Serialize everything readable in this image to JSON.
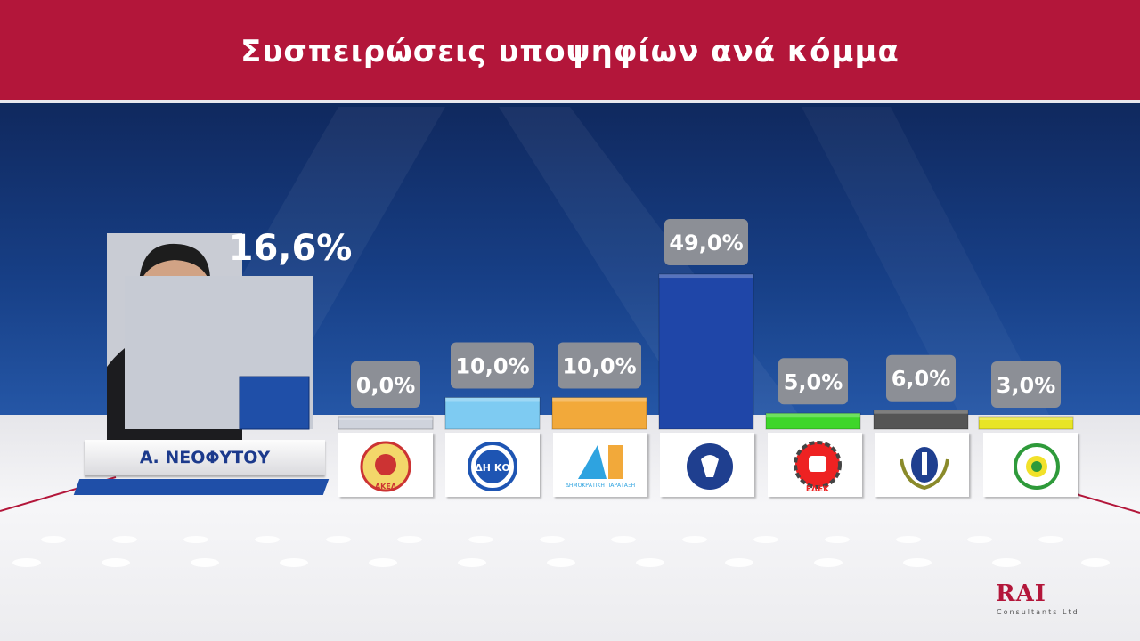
{
  "title": "Συσπειρώσεις υποψηφίων ανά κόμμα",
  "candidate": {
    "name": "Α. ΝΕΟΦΥΤΟΥ",
    "percent_label": "16,6%",
    "value": 16.6
  },
  "brand": {
    "name": "RAI",
    "subtitle": "Consultants Ltd"
  },
  "colors": {
    "header": "#b3163a",
    "accent_blue": "#1f4fa8"
  },
  "party_logos": [
    {
      "icon": "akel-logo-icon",
      "label": "ΑΚΕΛ"
    },
    {
      "icon": "diko-logo-icon",
      "label": "ΔΗ ΚΟ"
    },
    {
      "icon": "dipa-logo-icon",
      "label": "ΔΗΜΟΚΡΑΤΙΚΗ ΠΑΡΑΤΑΞΗ"
    },
    {
      "icon": "disy-logo-icon",
      "label": ""
    },
    {
      "icon": "edek-logo-icon",
      "label": "ΕΔΕΚ"
    },
    {
      "icon": "elam-logo-icon",
      "label": ""
    },
    {
      "icon": "greens-logo-icon",
      "label": ""
    }
  ],
  "chart_data": {
    "type": "bar",
    "title": "Συσπειρώσεις υποψηφίων ανά κόμμα",
    "categories": [
      "Α. ΝΕΟΦΥΤΟΥ",
      "ΑΚΕΛ",
      "ΔΗΚΟ",
      "ΔΗΠΑ",
      "ΔΗΣΥ",
      "ΕΔΕΚ",
      "ΕΛΑΜ",
      "Κίνημα Οικολόγων"
    ],
    "values": [
      16.6,
      0.0,
      10.0,
      10.0,
      49.0,
      5.0,
      6.0,
      3.0
    ],
    "value_labels": [
      "16,6%",
      "0,0%",
      "10,0%",
      "10,0%",
      "49,0%",
      "5,0%",
      "6,0%",
      "3,0%"
    ],
    "colors": [
      "#1f4fa8",
      "#cfd3dc",
      "#7ecbf2",
      "#f2a93a",
      "#1f46a8",
      "#3ed62a",
      "#555555",
      "#e8e526"
    ],
    "ylim": [
      0,
      55
    ],
    "grid": false,
    "legend": "none"
  }
}
